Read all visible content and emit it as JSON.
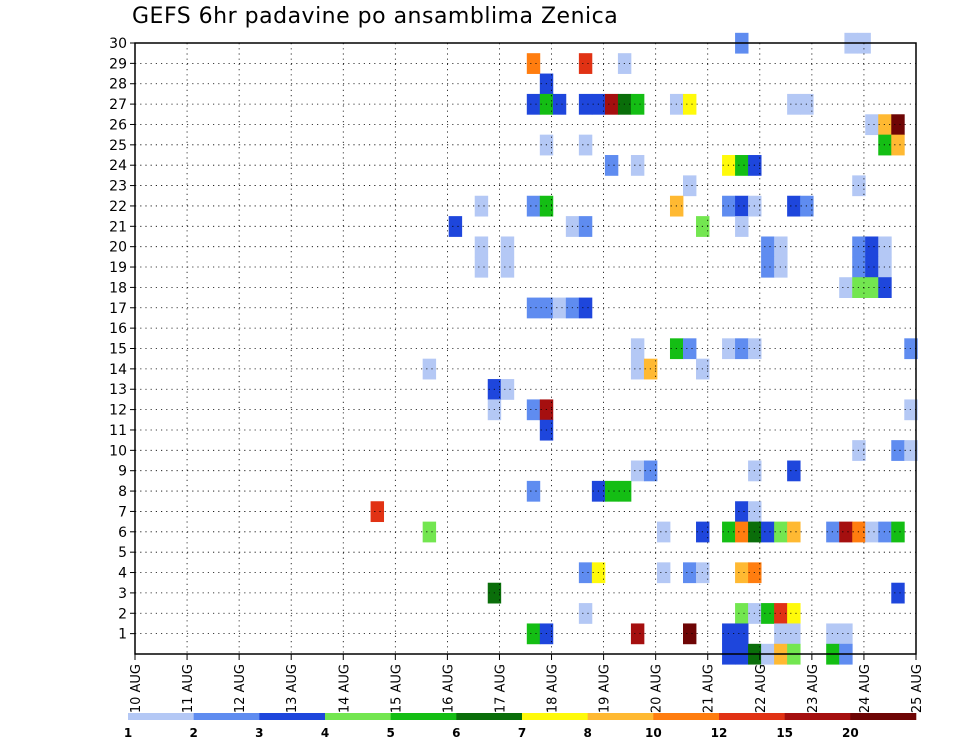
{
  "chart_data": {
    "type": "heatmap",
    "title": "GEFS 6hr padavine po ansamblima Zenica",
    "xlabel": "",
    "ylabel": "",
    "x_tick_labels": [
      "10 AUG",
      "11 AUG",
      "12 AUG",
      "13 AUG",
      "14 AUG",
      "15 AUG",
      "16 AUG",
      "17 AUG",
      "18 AUG",
      "19 AUG",
      "20 AUG",
      "21 AUG",
      "22 AUG",
      "23 AUG",
      "24 AUG",
      "25 AUG"
    ],
    "y_tick_labels": [
      "1",
      "2",
      "3",
      "4",
      "5",
      "6",
      "7",
      "8",
      "9",
      "10",
      "11",
      "12",
      "13",
      "14",
      "15",
      "16",
      "17",
      "18",
      "19",
      "20",
      "21",
      "22",
      "23",
      "24",
      "25",
      "26",
      "27",
      "28",
      "29",
      "30"
    ],
    "xlim_days": [
      10,
      25
    ],
    "ylim": [
      0,
      30
    ],
    "grid": true,
    "colorbar": {
      "placement": "bottom",
      "labels": [
        "1",
        "2",
        "3",
        "4",
        "5",
        "6",
        "7",
        "8",
        "10",
        "12",
        "15",
        "20"
      ],
      "colors": [
        "#b4c8f5",
        "#5f8cf0",
        "#1e46dc",
        "#73e650",
        "#14be14",
        "#0a6e0a",
        "#fffa0a",
        "#ffb932",
        "#ff7d0f",
        "#e13214",
        "#a50f0f",
        "#6e0505"
      ]
    },
    "cells": [
      [
        21.65,
        30,
        2
      ],
      [
        23.75,
        30,
        1
      ],
      [
        24.0,
        30,
        1
      ],
      [
        17.65,
        29,
        9
      ],
      [
        18.65,
        29,
        10
      ],
      [
        19.4,
        29,
        1
      ],
      [
        17.9,
        28,
        3
      ],
      [
        17.65,
        27,
        3
      ],
      [
        17.9,
        27,
        5
      ],
      [
        18.15,
        27,
        3
      ],
      [
        18.65,
        27,
        3
      ],
      [
        18.9,
        27,
        3
      ],
      [
        19.15,
        27,
        11
      ],
      [
        19.4,
        27,
        6
      ],
      [
        19.65,
        27,
        5
      ],
      [
        20.4,
        27,
        1
      ],
      [
        20.65,
        27,
        7
      ],
      [
        22.65,
        27,
        1
      ],
      [
        22.9,
        27,
        1
      ],
      [
        24.15,
        26,
        1
      ],
      [
        24.4,
        26,
        8
      ],
      [
        24.65,
        26,
        12
      ],
      [
        17.9,
        25,
        1
      ],
      [
        18.65,
        25,
        1
      ],
      [
        24.4,
        25,
        5
      ],
      [
        24.65,
        25,
        8
      ],
      [
        19.15,
        24,
        2
      ],
      [
        19.65,
        24,
        1
      ],
      [
        21.4,
        24,
        7
      ],
      [
        21.65,
        24,
        5
      ],
      [
        21.9,
        24,
        3
      ],
      [
        20.65,
        23,
        1
      ],
      [
        23.9,
        23,
        1
      ],
      [
        16.65,
        22,
        1
      ],
      [
        17.65,
        22,
        2
      ],
      [
        17.9,
        22,
        5
      ],
      [
        20.4,
        22,
        8
      ],
      [
        21.4,
        22,
        2
      ],
      [
        21.65,
        22,
        3
      ],
      [
        21.9,
        22,
        1
      ],
      [
        22.65,
        22,
        3
      ],
      [
        22.9,
        22,
        2
      ],
      [
        16.15,
        21,
        3
      ],
      [
        18.4,
        21,
        1
      ],
      [
        18.65,
        21,
        2
      ],
      [
        20.9,
        21,
        4
      ],
      [
        21.65,
        21,
        1
      ],
      [
        16.65,
        20,
        1
      ],
      [
        17.15,
        20,
        1
      ],
      [
        22.15,
        20,
        2
      ],
      [
        22.4,
        20,
        1
      ],
      [
        23.9,
        20,
        2
      ],
      [
        24.15,
        20,
        3
      ],
      [
        24.4,
        20,
        1
      ],
      [
        16.65,
        19,
        1
      ],
      [
        17.15,
        19,
        1
      ],
      [
        22.15,
        19,
        2
      ],
      [
        22.4,
        19,
        1
      ],
      [
        23.9,
        19,
        2
      ],
      [
        24.15,
        19,
        3
      ],
      [
        24.4,
        19,
        1
      ],
      [
        23.65,
        18,
        1
      ],
      [
        23.9,
        18,
        4
      ],
      [
        24.15,
        18,
        4
      ],
      [
        24.4,
        18,
        3
      ],
      [
        17.65,
        17,
        2
      ],
      [
        17.9,
        17,
        2
      ],
      [
        18.15,
        17,
        1
      ],
      [
        18.4,
        17,
        2
      ],
      [
        18.65,
        17,
        3
      ],
      [
        19.65,
        15,
        1
      ],
      [
        20.4,
        15,
        5
      ],
      [
        20.65,
        15,
        2
      ],
      [
        21.4,
        15,
        1
      ],
      [
        21.65,
        15,
        2
      ],
      [
        21.9,
        15,
        1
      ],
      [
        24.9,
        15,
        2
      ],
      [
        15.65,
        14,
        1
      ],
      [
        19.65,
        14,
        1
      ],
      [
        19.9,
        14,
        8
      ],
      [
        20.9,
        14,
        1
      ],
      [
        16.9,
        13,
        3
      ],
      [
        17.15,
        13,
        1
      ],
      [
        16.9,
        12,
        1
      ],
      [
        17.65,
        12,
        2
      ],
      [
        17.9,
        12,
        11
      ],
      [
        24.9,
        12,
        1
      ],
      [
        17.9,
        11,
        3
      ],
      [
        23.9,
        10,
        1
      ],
      [
        24.65,
        10,
        2
      ],
      [
        24.9,
        10,
        1
      ],
      [
        19.65,
        9,
        1
      ],
      [
        19.9,
        9,
        2
      ],
      [
        21.9,
        9,
        1
      ],
      [
        22.65,
        9,
        3
      ],
      [
        17.65,
        8,
        2
      ],
      [
        18.9,
        8,
        3
      ],
      [
        19.15,
        8,
        5
      ],
      [
        19.4,
        8,
        5
      ],
      [
        14.65,
        7,
        10
      ],
      [
        21.65,
        7,
        3
      ],
      [
        21.9,
        7,
        1
      ],
      [
        15.65,
        6,
        4
      ],
      [
        20.15,
        6,
        1
      ],
      [
        20.9,
        6,
        3
      ],
      [
        21.4,
        6,
        5
      ],
      [
        21.65,
        6,
        9
      ],
      [
        21.9,
        6,
        6
      ],
      [
        22.15,
        6,
        3
      ],
      [
        22.4,
        6,
        4
      ],
      [
        22.65,
        6,
        8
      ],
      [
        23.4,
        6,
        2
      ],
      [
        23.65,
        6,
        11
      ],
      [
        23.9,
        6,
        9
      ],
      [
        24.15,
        6,
        1
      ],
      [
        24.4,
        6,
        2
      ],
      [
        24.65,
        6,
        5
      ],
      [
        18.65,
        4,
        2
      ],
      [
        18.9,
        4,
        7
      ],
      [
        20.15,
        4,
        1
      ],
      [
        20.65,
        4,
        2
      ],
      [
        20.9,
        4,
        1
      ],
      [
        21.65,
        4,
        8
      ],
      [
        21.9,
        4,
        9
      ],
      [
        16.9,
        3,
        6
      ],
      [
        24.65,
        3,
        3
      ],
      [
        18.65,
        2,
        1
      ],
      [
        21.65,
        2,
        4
      ],
      [
        21.9,
        2,
        1
      ],
      [
        22.15,
        2,
        5
      ],
      [
        22.4,
        2,
        10
      ],
      [
        22.65,
        2,
        7
      ],
      [
        17.65,
        1,
        5
      ],
      [
        17.9,
        1,
        3
      ],
      [
        19.65,
        1,
        11
      ],
      [
        20.65,
        1,
        12
      ],
      [
        21.4,
        1,
        3
      ],
      [
        21.65,
        1,
        3
      ],
      [
        22.4,
        1,
        1
      ],
      [
        22.65,
        1,
        1
      ],
      [
        23.4,
        1,
        1
      ],
      [
        23.65,
        1,
        1
      ],
      [
        21.4,
        0,
        3
      ],
      [
        21.65,
        0,
        3
      ],
      [
        21.9,
        0,
        6
      ],
      [
        22.15,
        0,
        1
      ],
      [
        22.4,
        0,
        8
      ],
      [
        22.65,
        0,
        4
      ],
      [
        23.4,
        0,
        5
      ],
      [
        23.65,
        0,
        2
      ]
    ]
  }
}
